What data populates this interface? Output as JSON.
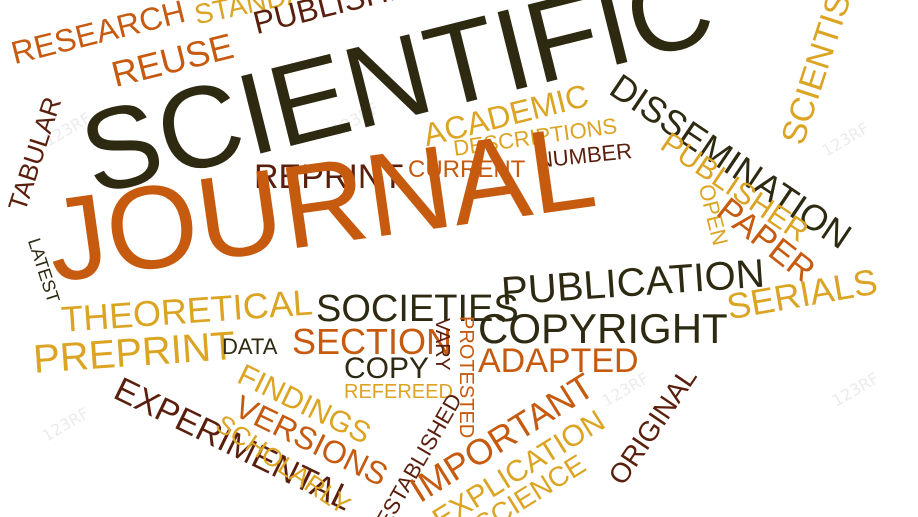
{
  "palette": {
    "dark": "#2e2a12",
    "orange": "#c65a0f",
    "gold": "#dca423",
    "brown": "#5a1f0c"
  },
  "watermark": "123RF",
  "words": [
    "RESEARCH",
    "STANDARDS",
    "PUBLISHED",
    "REUSE",
    "SCIENTIFIC",
    "SCIENTISTS",
    "TABULAR",
    "ACADEMIC",
    "DISSEMINATION",
    "DESCRIPTIONS",
    "REPRINT",
    "CURRENT",
    "NUMBER",
    "PUBLISHER",
    "JOURNAL",
    "OPEN",
    "PAPER",
    "LATEST",
    "THEORETICAL",
    "SOCIETIES",
    "PUBLICATION",
    "SERIALS",
    "PREPRINT",
    "DATA",
    "SECTION",
    "VARY",
    "PROTESTED",
    "COPYRIGHT",
    "COPY",
    "ADAPTED",
    "FINDINGS",
    "REFEREED",
    "EXPERIMENTAL",
    "VERSIONS",
    "SCHOLARLY",
    "ESTABLISHED",
    "IMPORTANT",
    "EXPLICATION",
    "SCIENCE",
    "ORIGINAL"
  ]
}
